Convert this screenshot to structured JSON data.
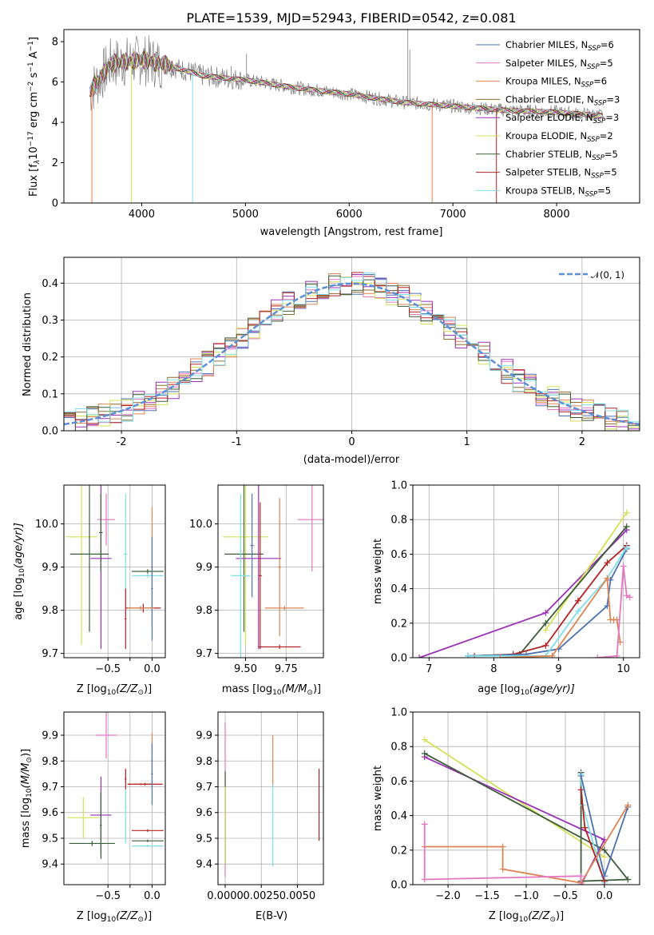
{
  "chart_data": [
    {
      "type": "line",
      "title": "PLATE=1539, MJD=52943, FIBERID=0542, z=0.081",
      "xlabel": "wavelength [Angstrom, rest frame]",
      "ylabel": "Flux [f",
      "ylabel_rest": "10",
      "ylabel_exp": "−17",
      "ylabel_units": " erg cm",
      "ylabel_cm_exp": "−2",
      "ylabel_s": " s",
      "ylabel_s_exp": "−1",
      "ylabel_A": " A",
      "ylabel_A_exp": "−1",
      "ylabel_close": "]",
      "xlim": [
        3250,
        8800
      ],
      "ylim": [
        0,
        8.6
      ],
      "xticks": [
        4000,
        5000,
        6000,
        7000,
        8000
      ],
      "yticks": [
        0,
        2,
        4,
        6,
        8
      ],
      "legend_position": "top-right",
      "series": [
        {
          "name": "Chabrier MILES, N",
          "sub": "SSP",
          "tail": "=6",
          "color": "#4c72b0"
        },
        {
          "name": "Salpeter MILES, N",
          "sub": "SSP",
          "tail": "=5",
          "color": "#e377c2"
        },
        {
          "name": "Kroupa MILES, N",
          "sub": "SSP",
          "tail": "=6",
          "color": "#dd8452"
        },
        {
          "name": "Chabrier ELODIE, N",
          "sub": "SSP",
          "tail": "=3",
          "color": "#8c6d31"
        },
        {
          "name": "Salpeter ELODIE, N",
          "sub": "SSP",
          "tail": "=3",
          "color": "#9b30b8"
        },
        {
          "name": "Kroupa ELODIE, N",
          "sub": "SSP",
          "tail": "=2",
          "color": "#d4e157"
        },
        {
          "name": "Chabrier STELIB, N",
          "sub": "SSP",
          "tail": "=5",
          "color": "#3d5c3a"
        },
        {
          "name": "Salpeter STELIB, N",
          "sub": "SSP",
          "tail": "=5",
          "color": "#b22222"
        },
        {
          "name": "Kroupa STELIB, N",
          "sub": "SSP",
          "tail": "=5",
          "color": "#80deea"
        }
      ],
      "continuum_points": {
        "x": [
          3500,
          3700,
          4000,
          4200,
          4600,
          5000,
          5500,
          6000,
          6500,
          7000,
          7500,
          8000,
          8500
        ],
        "y": [
          5.5,
          6.9,
          7.1,
          6.9,
          6.3,
          6.1,
          5.7,
          5.4,
          5.0,
          4.8,
          4.6,
          4.5,
          4.3
        ]
      }
    },
    {
      "type": "step",
      "xlabel": "(data-model)/error",
      "ylabel": "Normed distribution",
      "xlim": [
        -2.5,
        2.5
      ],
      "ylim": [
        0,
        0.47
      ],
      "xticks": [
        -2,
        -1,
        0,
        1,
        2
      ],
      "yticks": [
        0,
        0.1,
        0.2,
        0.3,
        0.4
      ],
      "legend_label": "𝒩(0, 1)",
      "legend_position": "top-right",
      "gaussian_color": "#5b8fd6"
    },
    {
      "type": "scatter",
      "xlabel": "Z [log",
      "xlabel_sub": "10",
      "xlabel_tail": "(Z/Z",
      "xlabel_sun": "⊙",
      "xlabel_end": ")]",
      "ylabel": "age  [log",
      "ylabel_sub": "10",
      "ylabel_tail": "(age/yr)]",
      "xlim": [
        -1.0,
        0.15
      ],
      "ylim": [
        9.69,
        10.09
      ],
      "xticks": [
        -0.5,
        -0.25,
        0.0
      ],
      "xtick_labels": [
        "−0.5",
        "",
        "0.0"
      ],
      "yticks": [
        9.7,
        9.8,
        9.9,
        10.0
      ],
      "points": [
        {
          "x": -0.8,
          "xerr": 0.18,
          "y": 9.97,
          "yerr": 0.25,
          "color": "#d4e157"
        },
        {
          "x": -0.71,
          "xerr": 0.22,
          "y": 9.93,
          "yerr": 0.18,
          "color": "#3d5c3a"
        },
        {
          "x": -0.58,
          "xerr": 0.12,
          "y": 9.92,
          "yerr": 0.21,
          "color": "#9b30b8"
        },
        {
          "x": -0.52,
          "xerr": 0.1,
          "y": 10.01,
          "yerr": 0.06,
          "color": "#e377c2"
        },
        {
          "x": -0.58,
          "xerr": 0.02,
          "y": 9.98,
          "yerr": 0.09,
          "color": "#3d5c3a"
        },
        {
          "x": -0.3,
          "xerr": 0.02,
          "y": 9.93,
          "yerr": 0.14,
          "color": "#80deea"
        },
        {
          "x": -0.1,
          "xerr": 0.2,
          "y": 9.805,
          "yerr": 0.01,
          "color": "#b22222"
        },
        {
          "x": -0.3,
          "xerr": 0.01,
          "y": 9.78,
          "yerr": 0.07,
          "color": "#b22222"
        },
        {
          "x": -0.05,
          "xerr": 0.18,
          "y": 9.89,
          "yerr": 0.005,
          "color": "#3d5c3a"
        },
        {
          "x": -0.05,
          "xerr": 0.18,
          "y": 9.88,
          "yerr": 0.005,
          "color": "#80deea"
        },
        {
          "x": 0.0,
          "xerr": 0.01,
          "y": 9.9,
          "yerr": 0.14,
          "color": "#dd8452"
        },
        {
          "x": 0.0,
          "xerr": 0.01,
          "y": 9.85,
          "yerr": 0.12,
          "color": "#4c72b0"
        },
        {
          "x": -0.13,
          "xerr": 0.15,
          "y": 9.805,
          "yerr": 0.005,
          "color": "#dd8452"
        }
      ]
    },
    {
      "type": "scatter",
      "xlabel": "mass [log",
      "xlabel_sub": "10",
      "xlabel_tail": "(M/M",
      "xlabel_sun": "⊙",
      "xlabel_end": ")]",
      "xlim": [
        9.33,
        9.98
      ],
      "ylim": [
        9.69,
        10.09
      ],
      "xticks": [
        9.5,
        9.75
      ],
      "xtick_labels": [
        "9.50",
        "9.75"
      ],
      "yticks": [
        9.7,
        9.8,
        9.9,
        10.0
      ],
      "points": [
        {
          "x": 9.5,
          "xerr": 0.14,
          "y": 9.97,
          "yerr": 0.25,
          "color": "#d4e157"
        },
        {
          "x": 9.49,
          "xerr": 0.12,
          "y": 9.93,
          "yerr": 0.18,
          "color": "#3d5c3a"
        },
        {
          "x": 9.58,
          "xerr": 0.14,
          "y": 9.92,
          "yerr": 0.21,
          "color": "#9b30b8"
        },
        {
          "x": 9.91,
          "xerr": 0.09,
          "y": 10.01,
          "yerr": 0.12,
          "color": "#e377c2"
        },
        {
          "x": 9.47,
          "xerr": 0.06,
          "y": 9.88,
          "yerr": 0.19,
          "color": "#80deea"
        },
        {
          "x": 9.59,
          "xerr": 0.01,
          "y": 9.88,
          "yerr": 0.17,
          "color": "#b22222"
        },
        {
          "x": 9.71,
          "xerr": 0.13,
          "y": 9.715,
          "yerr": 0.005,
          "color": "#b22222"
        },
        {
          "x": 9.71,
          "xerr": 0.01,
          "y": 9.9,
          "yerr": 0.16,
          "color": "#dd8452"
        },
        {
          "x": 9.74,
          "xerr": 0.12,
          "y": 9.805,
          "yerr": 0.005,
          "color": "#dd8452"
        },
        {
          "x": 9.54,
          "xerr": 0.01,
          "y": 9.95,
          "yerr": 0.12,
          "color": "#4c72b0"
        }
      ]
    },
    {
      "type": "line",
      "xlabel": "age  [log",
      "xlabel_sub": "10",
      "xlabel_tail": "(age/yr)]",
      "ylabel": "mass weight",
      "xlim": [
        6.75,
        10.25
      ],
      "ylim": [
        0,
        1.0
      ],
      "xticks": [
        7,
        8,
        9,
        10
      ],
      "yticks": [
        0,
        0.2,
        0.4,
        0.6,
        0.8,
        1.0
      ],
      "series": [
        {
          "color": "#9b30b8",
          "x": [
            6.85,
            8.8,
            10.05
          ],
          "y": [
            0.0,
            0.26,
            0.74
          ]
        },
        {
          "color": "#d4e157",
          "x": [
            8.8,
            10.05
          ],
          "y": [
            0.16,
            0.84
          ]
        },
        {
          "color": "#3d5c3a",
          "x": [
            7.6,
            8.4,
            8.8,
            10.05
          ],
          "y": [
            0.01,
            0.02,
            0.2,
            0.76
          ]
        },
        {
          "color": "#b22222",
          "x": [
            7.7,
            8.3,
            8.8,
            9.3,
            9.75,
            10.05
          ],
          "y": [
            0.01,
            0.02,
            0.07,
            0.33,
            0.55,
            0.65
          ]
        },
        {
          "color": "#4c72b0",
          "x": [
            7.6,
            8.5,
            9.0,
            9.75,
            9.8,
            10.05
          ],
          "y": [
            0.01,
            0.02,
            0.05,
            0.3,
            0.45,
            0.63
          ]
        },
        {
          "color": "#80deea",
          "x": [
            7.6,
            8.8,
            9.3,
            9.75,
            10.05
          ],
          "y": [
            0.01,
            0.01,
            0.27,
            0.46,
            0.64
          ]
        },
        {
          "color": "#dd8452",
          "x": [
            8.1,
            8.9,
            9.75,
            9.8,
            9.85,
            9.9,
            9.95
          ],
          "y": [
            0.0,
            0.01,
            0.46,
            0.22,
            0.22,
            0.22,
            0.09
          ]
        },
        {
          "color": "#e377c2",
          "x": [
            9.6,
            9.9,
            10.0,
            10.05,
            10.1
          ],
          "y": [
            0.0,
            0.01,
            0.53,
            0.36,
            0.35
          ]
        }
      ]
    },
    {
      "type": "scatter",
      "xlabel": "Z [log",
      "xlabel_sub": "10",
      "xlabel_tail": "(Z/Z",
      "xlabel_sun": "⊙",
      "xlabel_end": ")]",
      "ylabel": "mass [log",
      "ylabel_sub": "10",
      "ylabel_tail": "(M/M",
      "ylabel_sun": "⊙",
      "ylabel_end": ")]",
      "xlim": [
        -1.0,
        0.15
      ],
      "ylim": [
        9.32,
        9.99
      ],
      "xticks": [
        -0.5,
        -0.25,
        0.0
      ],
      "xtick_labels": [
        "−0.5",
        "",
        "0.0"
      ],
      "yticks": [
        9.4,
        9.5,
        9.6,
        9.7,
        9.8,
        9.9
      ],
      "points": [
        {
          "x": -0.78,
          "xerr": 0.18,
          "y": 9.58,
          "yerr": 0.08,
          "color": "#d4e157"
        },
        {
          "x": -0.68,
          "xerr": 0.26,
          "y": 9.48,
          "yerr": 0.01,
          "color": "#3d5c3a"
        },
        {
          "x": -0.58,
          "xerr": 0.12,
          "y": 9.59,
          "yerr": 0.15,
          "color": "#9b30b8"
        },
        {
          "x": -0.52,
          "xerr": 0.12,
          "y": 9.9,
          "yerr": 0.09,
          "color": "#e377c2"
        },
        {
          "x": -0.58,
          "xerr": 0.01,
          "y": 9.55,
          "yerr": 0.13,
          "color": "#3d5c3a"
        },
        {
          "x": -0.3,
          "xerr": 0.01,
          "y": 9.62,
          "yerr": 0.14,
          "color": "#80deea"
        },
        {
          "x": -0.3,
          "xerr": 0.01,
          "y": 9.73,
          "yerr": 0.04,
          "color": "#b22222"
        },
        {
          "x": -0.13,
          "xerr": 0.15,
          "y": 9.71,
          "yerr": 0.005,
          "color": "#dd8452"
        },
        {
          "x": -0.08,
          "xerr": 0.2,
          "y": 9.71,
          "yerr": 0.005,
          "color": "#b22222"
        },
        {
          "x": 0.0,
          "xerr": 0.01,
          "y": 9.8,
          "yerr": 0.11,
          "color": "#dd8452"
        },
        {
          "x": -0.05,
          "xerr": 0.18,
          "y": 9.53,
          "yerr": 0.005,
          "color": "#b22222"
        },
        {
          "x": -0.05,
          "xerr": 0.18,
          "y": 9.49,
          "yerr": 0.005,
          "color": "#3d5c3a"
        },
        {
          "x": -0.05,
          "xerr": 0.18,
          "y": 9.47,
          "yerr": 0.005,
          "color": "#80deea"
        },
        {
          "x": 0.0,
          "xerr": 0.01,
          "y": 9.75,
          "yerr": 0.12,
          "color": "#4c72b0"
        }
      ]
    },
    {
      "type": "scatter",
      "xlabel": "E(B-V)",
      "xlim": [
        -0.0005,
        0.0068
      ],
      "ylim": [
        9.32,
        9.99
      ],
      "xticks": [
        0.0,
        0.0025,
        0.005
      ],
      "xtick_labels": [
        "0.0000",
        "0.0025",
        "0.0050"
      ],
      "yticks": [
        9.4,
        9.5,
        9.6,
        9.7,
        9.8,
        9.9
      ],
      "points": [
        {
          "x": 0.0,
          "y": 9.65,
          "yerr": 0.3,
          "color": "#e377c2"
        },
        {
          "x": 0.0,
          "y": 9.58,
          "yerr": 0.18,
          "color": "#3d5c3a"
        },
        {
          "x": 0.0,
          "y": 9.55,
          "yerr": 0.15,
          "color": "#d4e157"
        },
        {
          "x": 0.0033,
          "y": 9.8,
          "yerr": 0.1,
          "color": "#dd8452"
        },
        {
          "x": 0.0033,
          "y": 9.55,
          "yerr": 0.16,
          "color": "#80deea"
        },
        {
          "x": 0.0065,
          "y": 9.63,
          "yerr": 0.14,
          "color": "#b22222"
        }
      ]
    },
    {
      "type": "line",
      "xlabel": "Z [log",
      "xlabel_sub": "10",
      "xlabel_tail": "(Z/Z",
      "xlabel_sun": "⊙",
      "xlabel_end": ")]",
      "ylabel": "mass weight",
      "xlim": [
        -2.45,
        0.45
      ],
      "ylim": [
        0,
        1.0
      ],
      "xticks": [
        -2.0,
        -1.5,
        -1.0,
        -0.5,
        0.0
      ],
      "xtick_labels": [
        "−2.0",
        "−1.5",
        "−1.0",
        "−0.5",
        "0.0"
      ],
      "yticks": [
        0,
        0.2,
        0.4,
        0.6,
        0.8,
        1.0
      ],
      "series": [
        {
          "color": "#d4e157",
          "x": [
            -2.3,
            0.0
          ],
          "y": [
            0.84,
            0.16
          ]
        },
        {
          "color": "#9b30b8",
          "x": [
            -2.3,
            0.0,
            -0.3
          ],
          "y": [
            0.74,
            0.26,
            0.0
          ]
        },
        {
          "color": "#3d5c3a",
          "x": [
            -2.3,
            0.0,
            0.3,
            -0.3,
            -0.3
          ],
          "y": [
            0.76,
            0.2,
            0.03,
            0.02,
            0.65
          ]
        },
        {
          "color": "#80deea",
          "x": [
            -0.3,
            -0.28,
            0.0
          ],
          "y": [
            0.64,
            0.46,
            0.01
          ]
        },
        {
          "color": "#b22222",
          "x": [
            -0.3,
            -0.25,
            0.0
          ],
          "y": [
            0.55,
            0.33,
            0.02
          ]
        },
        {
          "color": "#4c72b0",
          "x": [
            -0.3,
            0.0,
            0.3
          ],
          "y": [
            0.63,
            0.05,
            0.45
          ]
        },
        {
          "color": "#dd8452",
          "x": [
            -2.3,
            -1.3,
            -1.3,
            -0.3,
            0.3
          ],
          "y": [
            0.22,
            0.22,
            0.09,
            0.01,
            0.46
          ]
        },
        {
          "color": "#e377c2",
          "x": [
            -2.3,
            -2.3,
            -0.3,
            -0.3
          ],
          "y": [
            0.35,
            0.03,
            0.05,
            0.0
          ]
        }
      ]
    }
  ]
}
